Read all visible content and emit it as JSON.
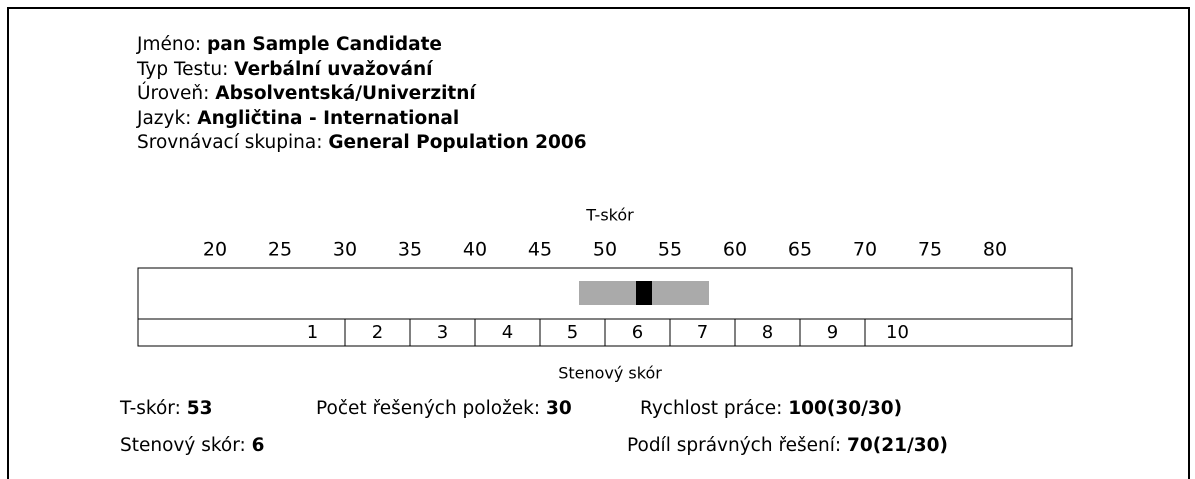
{
  "candidate": [
    {
      "label": "Jméno:",
      "value": "pan Sample Candidate"
    },
    {
      "label": "Typ Testu:",
      "value": "Verbální uvažování"
    },
    {
      "label": "Úroveň:",
      "value": "Absolventská/Univerzitní"
    },
    {
      "label": "Jazyk:",
      "value": "Angličtina - International"
    },
    {
      "label": "Srovnávací skupina:",
      "value": "General Population 2006"
    }
  ],
  "scale": {
    "title": "T-skór",
    "ticks": [
      20,
      25,
      30,
      35,
      40,
      45,
      50,
      55,
      60,
      65,
      70,
      75,
      80
    ],
    "band": [
      48,
      58
    ],
    "sten_title": "Stenový skór",
    "stens": [
      "1",
      "2",
      "3",
      "4",
      "5",
      "6",
      "7",
      "8",
      "9",
      "10"
    ]
  },
  "results": [
    {
      "label": "T-skór:",
      "value": 53
    },
    {
      "label": "Počet řešených položek:",
      "value": 30
    },
    {
      "label": "Rychlost práce:",
      "value": "100(30/30)"
    },
    {
      "label": "Stenový skór:",
      "value": 6
    },
    {
      "label": "Podíl správných řešení:",
      "value": "70(21/30)"
    }
  ]
}
